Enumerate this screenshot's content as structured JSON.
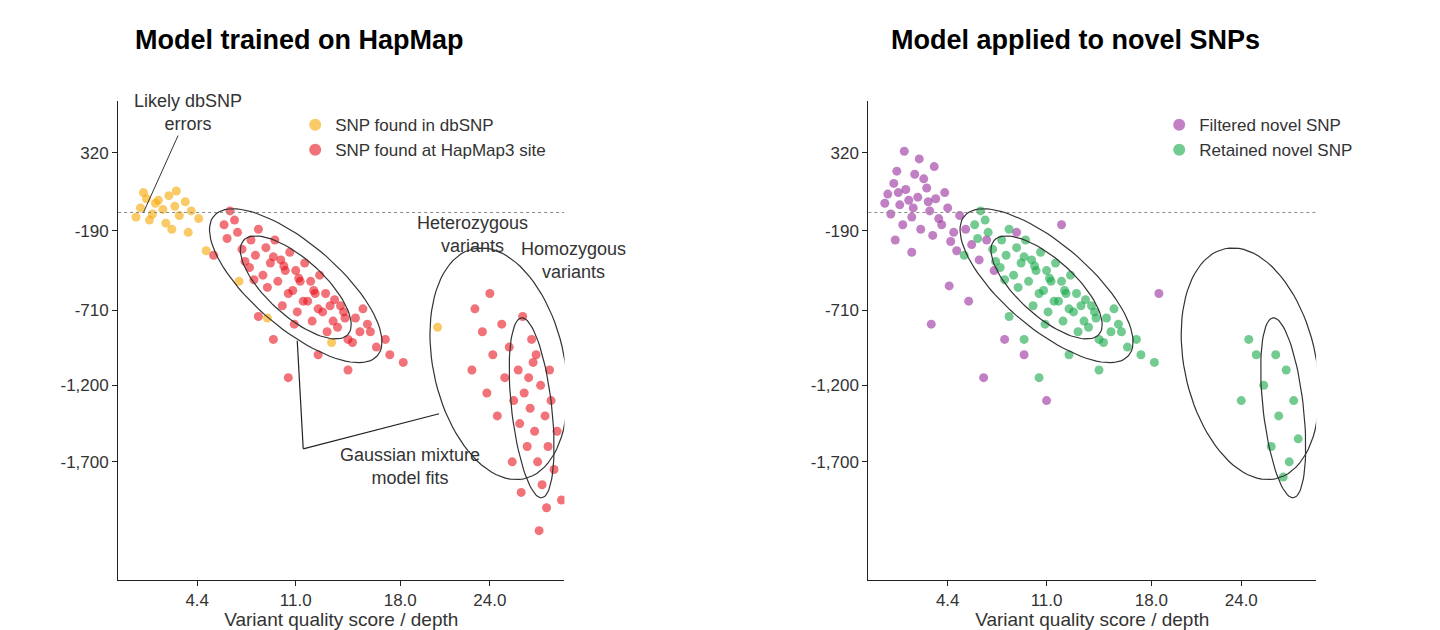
{
  "chart_data": [
    {
      "type": "scatter",
      "title": "Model trained on HapMap",
      "x_label": "Variant quality score / depth",
      "xlim": [
        -0.9,
        29
      ],
      "xticks": [
        4.4,
        {
          "value": 11,
          "label": "11.0"
        },
        {
          "value": 18,
          "label": "18.0"
        },
        {
          "value": 24,
          "label": "24.0"
        }
      ],
      "ylim": [
        -2470,
        660
      ],
      "yticks": [
        {
          "value": -1700,
          "label": "-1,700"
        },
        {
          "value": -1200,
          "label": "-1,200"
        },
        -710,
        -190,
        320
      ],
      "grid": false,
      "legend": "top",
      "reference_line": -70,
      "annotations": [
        {
          "lines": [
            "Likely dbSNP",
            "errors"
          ]
        },
        {
          "lines": [
            "Heterozygous",
            "variants"
          ]
        },
        {
          "lines": [
            "Homozygous",
            "variants"
          ]
        },
        {
          "lines": [
            "Gaussian mixture",
            "model fits"
          ]
        }
      ],
      "ellipses": [
        {
          "center": [
            11.0,
            -549
          ],
          "axis_a": [
            5.47,
            -458
          ],
          "axis_b": [
            1.86,
            208
          ]
        },
        {
          "center": [
            11.0,
            -560
          ],
          "axis_a": [
            3.5,
            -307
          ],
          "axis_b": [
            1.24,
            139
          ]
        },
        {
          "center": [
            24.6,
            -1059
          ],
          "axis_a": [
            1.69,
            -752
          ],
          "axis_b": [
            4.29,
            90
          ]
        },
        {
          "center": [
            26.8,
            -1347
          ],
          "axis_a": [
            0.68,
            -588
          ],
          "axis_b": [
            1.34,
            14
          ]
        }
      ],
      "series": [
        {
          "name": "SNP found in dbSNP",
          "color": "#f7a600",
          "marker": "circle",
          "x": [
            0.6,
            1.0,
            1.4,
            1.8,
            2.1,
            2.5,
            2.9,
            3.2,
            3.6,
            1.2,
            2.3,
            0.8,
            4.0,
            3.0,
            1.6,
            0.3,
            2.7,
            4.5,
            5.0,
            7.2,
            9.1,
            13.4,
            20.5,
            3.8
          ],
          "y": [
            -40,
            20,
            -80,
            10,
            -50,
            40,
            -30,
            -90,
            0,
            -120,
            -140,
            60,
            -60,
            70,
            -10,
            -100,
            -180,
            -110,
            -320,
            -520,
            -760,
            -920,
            -820,
            -200
          ]
        },
        {
          "name": "SNP found at HapMap3 site",
          "color": "#e8141e",
          "marker": "circle",
          "x": [
            6.2,
            6.6,
            6.4,
            7.1,
            7.4,
            6.9,
            7.6,
            8.0,
            8.3,
            7.9,
            8.5,
            8.2,
            9.0,
            9.3,
            8.8,
            9.5,
            9.1,
            9.6,
            10.0,
            10.3,
            9.8,
            10.5,
            10.2,
            10.1,
            10.6,
            11.0,
            11.3,
            10.8,
            11.5,
            11.2,
            11.1,
            11.6,
            10.9,
            12.0,
            12.3,
            11.8,
            12.5,
            12.2,
            12.1,
            12.6,
            13.0,
            13.3,
            12.8,
            13.5,
            13.1,
            13.6,
            14.0,
            14.3,
            13.8,
            14.5,
            14.2,
            15.0,
            15.3,
            14.8,
            15.5,
            16.0,
            16.4,
            15.8,
            17.0,
            17.3,
            9.5,
            12.5,
            8.5,
            14.5,
            10.5,
            5.5,
            18.2,
            23.0,
            23.5,
            24.0,
            24.2,
            22.8,
            24.8,
            25.0,
            25.3,
            25.6,
            25.9,
            26.0,
            26.3,
            26.5,
            26.7,
            26.9,
            27.0,
            27.2,
            27.4,
            27.5,
            27.7,
            27.9,
            28.1,
            28.3,
            28.5,
            27.8,
            26.8,
            26.2,
            28.8,
            27.3,
            24.5,
            23.8,
            25.5,
            26.1,
            28.0,
            27.1,
            26.6
          ],
          "y": [
            -150,
            -60,
            -240,
            -200,
            -310,
            -120,
            -390,
            -250,
            -350,
            -430,
            -180,
            -510,
            -300,
            -400,
            -480,
            -360,
            -560,
            -250,
            -380,
            -450,
            -520,
            -600,
            -420,
            -680,
            -330,
            -450,
            -520,
            -580,
            -650,
            -500,
            -720,
            -400,
            -800,
            -520,
            -600,
            -650,
            -700,
            -580,
            -780,
            -480,
            -600,
            -680,
            -720,
            -780,
            -850,
            -640,
            -680,
            -760,
            -820,
            -900,
            -720,
            -760,
            -850,
            -920,
            -700,
            -850,
            -950,
            -800,
            -900,
            -1000,
            -900,
            -1000,
            -750,
            -1100,
            -1150,
            -350,
            -1050,
            -700,
            -850,
            -600,
            -1000,
            -1100,
            -800,
            -1150,
            -950,
            -1300,
            -1100,
            -1450,
            -1250,
            -1600,
            -1350,
            -1050,
            -1500,
            -1700,
            -1200,
            -1850,
            -1400,
            -1600,
            -1300,
            -1750,
            -1500,
            -2000,
            -900,
            -750,
            -1950,
            -2150,
            -1400,
            -1250,
            -1700,
            -1900,
            -1100,
            -1000,
            -1150
          ]
        }
      ]
    },
    {
      "type": "scatter",
      "title": "Model applied to novel SNPs",
      "x_label": "Variant quality score / depth",
      "xlim": [
        -0.9,
        29
      ],
      "xticks": [
        4.4,
        {
          "value": 11,
          "label": "11.0"
        },
        {
          "value": 18,
          "label": "18.0"
        },
        {
          "value": 24,
          "label": "24.0"
        }
      ],
      "ylim": [
        -2470,
        660
      ],
      "yticks": [
        {
          "value": -1700,
          "label": "-1,700"
        },
        {
          "value": -1200,
          "label": "-1,200"
        },
        -710,
        -190,
        320
      ],
      "grid": false,
      "legend": "top",
      "reference_line": -70,
      "ellipses": [
        {
          "center": [
            11.0,
            -549
          ],
          "axis_a": [
            5.47,
            -458
          ],
          "axis_b": [
            1.86,
            208
          ]
        },
        {
          "center": [
            11.0,
            -560
          ],
          "axis_a": [
            3.5,
            -307
          ],
          "axis_b": [
            1.24,
            139
          ]
        },
        {
          "center": [
            24.6,
            -1059
          ],
          "axis_a": [
            1.69,
            -752
          ],
          "axis_b": [
            4.29,
            90
          ]
        },
        {
          "center": [
            26.8,
            -1347
          ],
          "axis_a": [
            0.68,
            -588
          ],
          "axis_b": [
            1.34,
            14
          ]
        }
      ],
      "series": [
        {
          "name": "Filtered novel SNP",
          "color": "#9a2c9c",
          "marker": "circle",
          "x": [
            0.4,
            0.8,
            1.2,
            1.6,
            2.0,
            2.4,
            2.8,
            3.2,
            3.6,
            4.0,
            4.4,
            4.8,
            5.2,
            0.6,
            1.0,
            1.4,
            1.8,
            2.2,
            2.6,
            3.0,
            3.4,
            3.8,
            4.2,
            4.6,
            5.6,
            6.0,
            0.2,
            1.1,
            2.1,
            3.1,
            5.0,
            6.5,
            7.0,
            2.5,
            1.5,
            3.5,
            0.9,
            2.0,
            7.5,
            8.2,
            5.8,
            9.5,
            4.5,
            3.3,
            6.8,
            11.0,
            18.5,
            9.0,
            12.0
          ],
          "y": [
            50,
            120,
            -20,
            80,
            -100,
            30,
            150,
            -60,
            20,
            -150,
            -40,
            -200,
            -90,
            -80,
            200,
            -150,
            10,
            180,
            -180,
            90,
            -220,
            -110,
            60,
            -260,
            -180,
            -280,
            -10,
            60,
            -40,
            0,
            -320,
            -380,
            -250,
            280,
            330,
            230,
            -250,
            -330,
            -450,
            -900,
            -650,
            -1000,
            -550,
            -800,
            -1150,
            -1300,
            -600,
            -200,
            -150
          ]
        },
        {
          "name": "Retained novel SNP",
          "color": "#16a84a",
          "marker": "circle",
          "x": [
            6.2,
            6.6,
            6.4,
            7.1,
            7.4,
            6.9,
            7.6,
            8.0,
            8.3,
            7.9,
            8.5,
            8.2,
            9.0,
            9.3,
            8.8,
            9.5,
            9.1,
            9.6,
            10.0,
            10.3,
            9.8,
            10.5,
            10.2,
            10.1,
            10.6,
            11.0,
            11.3,
            10.8,
            11.5,
            11.2,
            11.1,
            11.6,
            10.9,
            12.0,
            12.3,
            11.8,
            12.5,
            12.2,
            12.1,
            12.6,
            13.0,
            13.3,
            12.8,
            13.5,
            13.1,
            13.6,
            14.0,
            14.3,
            13.8,
            14.5,
            14.2,
            15.0,
            15.3,
            14.8,
            15.5,
            16.0,
            16.4,
            15.8,
            17.0,
            17.3,
            9.5,
            12.5,
            8.5,
            14.5,
            10.5,
            5.5,
            18.2,
            24.5,
            25.5,
            26.5,
            27.0,
            26.0,
            27.5,
            25.0,
            26.8,
            27.8,
            24.0,
            26.3,
            27.2
          ],
          "y": [
            -150,
            -60,
            -240,
            -200,
            -310,
            -120,
            -390,
            -250,
            -350,
            -430,
            -180,
            -510,
            -300,
            -400,
            -480,
            -360,
            -560,
            -250,
            -380,
            -450,
            -520,
            -600,
            -420,
            -680,
            -330,
            -450,
            -520,
            -580,
            -650,
            -500,
            -720,
            -400,
            -800,
            -520,
            -600,
            -650,
            -700,
            -580,
            -780,
            -480,
            -600,
            -680,
            -720,
            -780,
            -850,
            -640,
            -680,
            -760,
            -820,
            -900,
            -720,
            -760,
            -850,
            -920,
            -700,
            -850,
            -950,
            -800,
            -900,
            -1000,
            -900,
            -1000,
            -750,
            -1100,
            -1150,
            -350,
            -1050,
            -900,
            -1200,
            -1400,
            -1100,
            -1600,
            -1300,
            -1000,
            -1800,
            -1550,
            -1300,
            -1000,
            -1700
          ]
        }
      ]
    }
  ]
}
